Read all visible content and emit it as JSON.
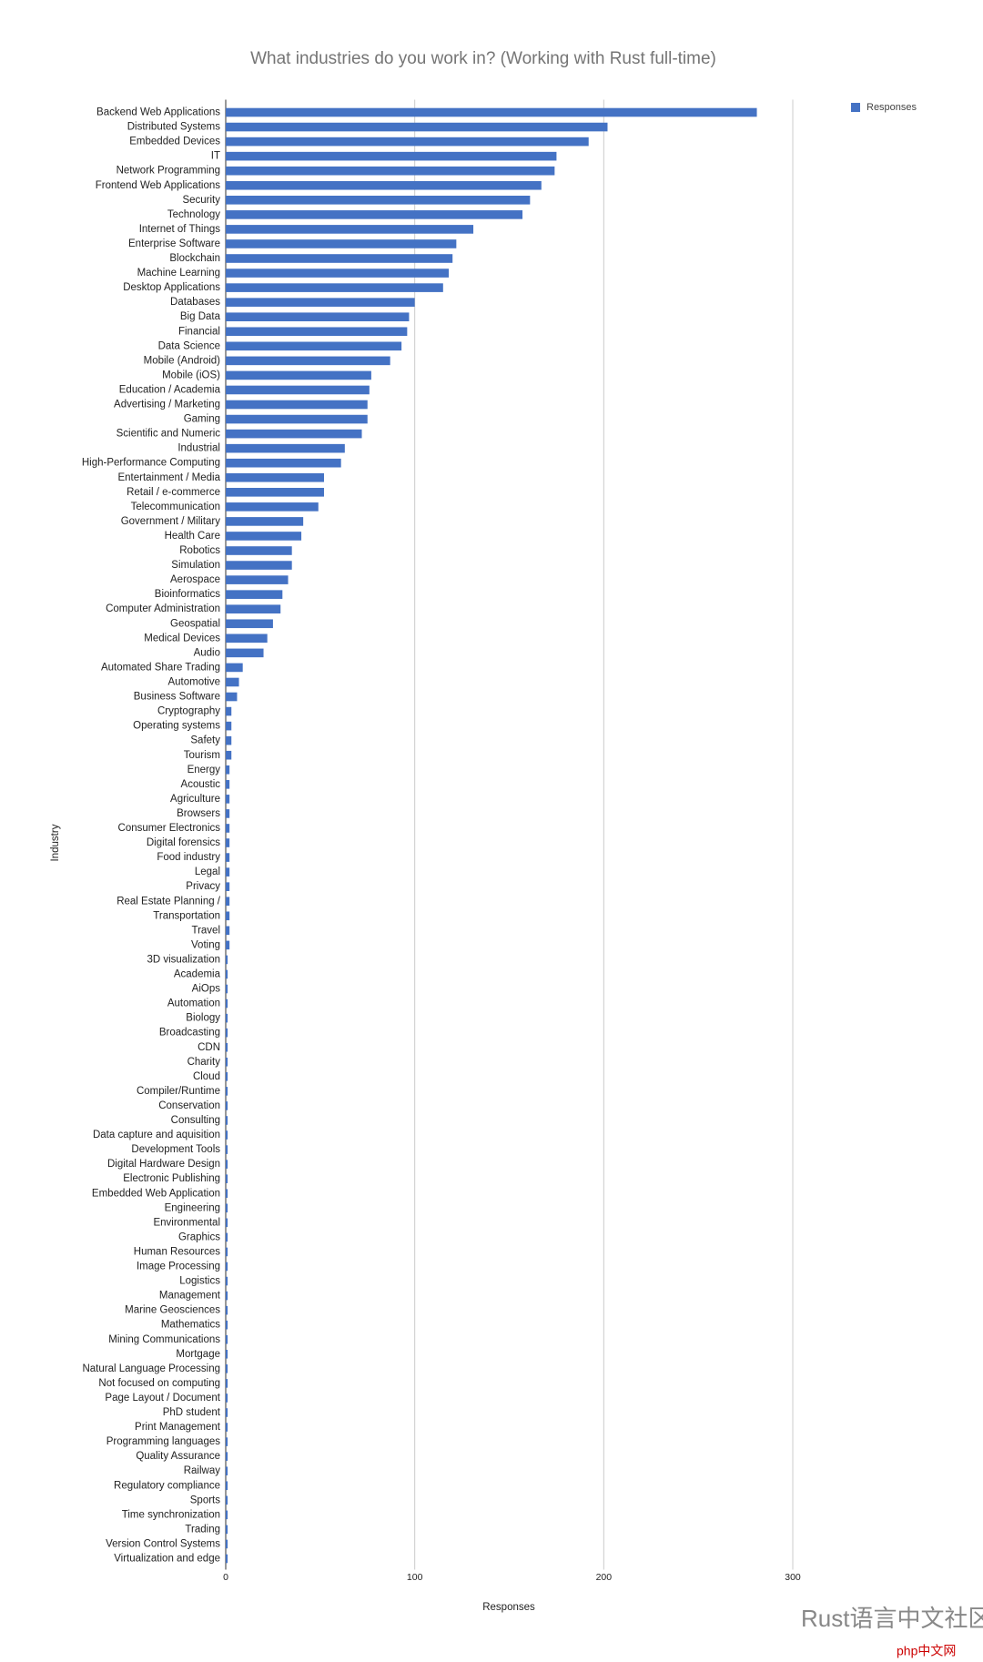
{
  "chart_data": {
    "type": "bar",
    "orientation": "horizontal",
    "title": "What industries do you work in? (Working with Rust full-time)",
    "x_label": "Responses",
    "y_label": "Industry",
    "categories": [
      "Backend Web Applications",
      "Distributed Systems",
      "Embedded Devices",
      "IT",
      "Network Programming",
      "Frontend Web Applications",
      "Security",
      "Technology",
      "Internet of Things",
      "Enterprise Software",
      "Blockchain",
      "Machine Learning",
      "Desktop Applications",
      "Databases",
      "Big Data",
      "Financial",
      "Data Science",
      "Mobile (Android)",
      "Mobile (iOS)",
      "Education / Academia",
      "Advertising / Marketing",
      "Gaming",
      "Scientific and Numeric",
      "Industrial",
      "High-Performance Computing",
      "Entertainment / Media",
      "Retail / e-commerce",
      "Telecommunication",
      "Government / Military",
      "Health Care",
      "Robotics",
      "Simulation",
      "Aerospace",
      "Bioinformatics",
      "Computer Administration",
      "Geospatial",
      "Medical Devices",
      "Audio",
      "Automated Share Trading",
      "Automotive",
      "Business Software",
      "Cryptography",
      "Operating systems",
      "Safety",
      "Tourism",
      "Energy",
      "Acoustic",
      "Agriculture",
      "Browsers",
      "Consumer Electronics",
      "Digital forensics",
      "Food industry",
      "Legal",
      "Privacy",
      "Real Estate Planning /",
      "Transportation",
      "Travel",
      "Voting",
      "3D visualization",
      "Academia",
      "AiOps",
      "Automation",
      "Biology",
      "Broadcasting",
      "CDN",
      "Charity",
      "Cloud",
      "Compiler/Runtime",
      "Conservation",
      "Consulting",
      "Data capture and aquisition",
      "Development Tools",
      "Digital Hardware Design",
      "Electronic Publishing",
      "Embedded Web Application",
      "Engineering",
      "Environmental",
      "Graphics",
      "Human Resources",
      "Image Processing",
      "Logistics",
      "Management",
      "Marine Geosciences",
      "Mathematics",
      "Mining Communications",
      "Mortgage",
      "Natural Language Processing",
      "Not focused on computing",
      "Page Layout / Document",
      "PhD student",
      "Print Management",
      "Programming languages",
      "Quality Assurance",
      "Railway",
      "Regulatory compliance",
      "Sports",
      "Time synchronization",
      "Trading",
      "Version Control Systems",
      "Virtualization and edge"
    ],
    "series": [
      {
        "name": "Responses",
        "color": "#4472c4",
        "values": [
          281,
          202,
          192,
          175,
          174,
          167,
          161,
          157,
          131,
          122,
          120,
          118,
          115,
          100,
          97,
          96,
          93,
          87,
          77,
          76,
          75,
          75,
          72,
          63,
          61,
          52,
          52,
          49,
          41,
          40,
          35,
          35,
          33,
          30,
          29,
          25,
          22,
          20,
          9,
          7,
          6,
          3,
          3,
          3,
          3,
          2,
          2,
          2,
          2,
          2,
          2,
          2,
          2,
          2,
          2,
          2,
          2,
          2,
          1,
          1,
          1,
          1,
          1,
          1,
          1,
          1,
          1,
          1,
          1,
          1,
          1,
          1,
          1,
          1,
          1,
          1,
          1,
          1,
          1,
          1,
          1,
          1,
          1,
          1,
          1,
          1,
          1,
          1,
          1,
          1,
          1,
          1,
          1,
          1,
          1,
          1,
          1,
          1,
          1,
          1
        ]
      }
    ],
    "xlim": [
      0,
      300
    ],
    "xticks": [
      0,
      100,
      200,
      300
    ],
    "grid": true,
    "legend": "top-right"
  },
  "watermark": {
    "text": "Rust语言中文社区",
    "site": "php中文网"
  }
}
